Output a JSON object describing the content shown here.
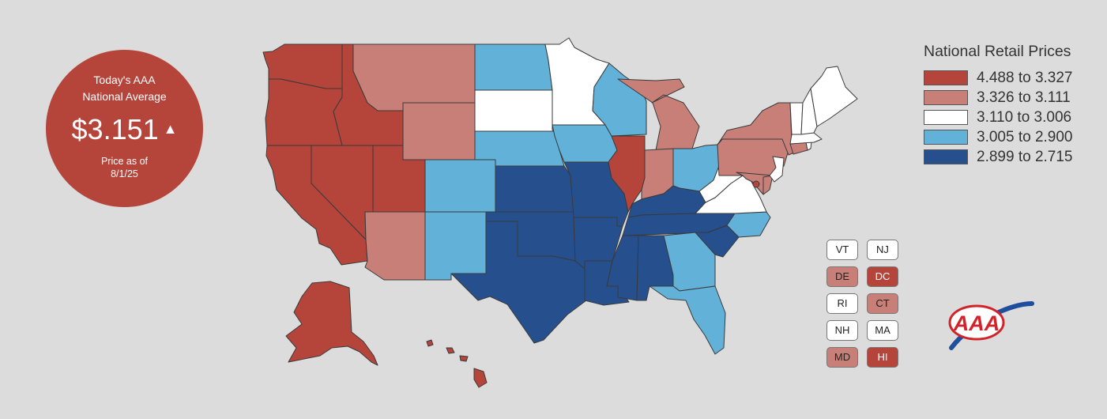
{
  "badge": {
    "title": "Today's AAA\nNational Average",
    "price": "$3.151",
    "trend_icon": "up-triangle-icon",
    "as_of": "Price as of\n8/1/25"
  },
  "legend": {
    "title": "National Retail Prices",
    "ranges": [
      {
        "label": "4.488 to 3.327",
        "color": "#b5443a"
      },
      {
        "label": "3.326 to 3.111",
        "color": "#c87f78"
      },
      {
        "label": "3.110 to 3.006",
        "color": "#ffffff"
      },
      {
        "label": "3.005 to 2.900",
        "color": "#62b1d8"
      },
      {
        "label": "2.899 to 2.715",
        "color": "#264f8e"
      }
    ]
  },
  "states": {
    "WA": 0,
    "OR": 0,
    "CA": 0,
    "NV": 0,
    "ID": 0,
    "UT": 0,
    "AK": 0,
    "HI": 0,
    "IL": 0,
    "DC": 0,
    "MT": 1,
    "WY": 1,
    "AZ": 1,
    "MI": 1,
    "IN": 1,
    "NY": 1,
    "PA": 1,
    "DE": 1,
    "MD": 1,
    "CT": 1,
    "MN": 2,
    "SD": 2,
    "WV": 2,
    "VA": 2,
    "NJ": 2,
    "ME": 2,
    "NH": 2,
    "VT": 2,
    "MA": 2,
    "RI": 2,
    "ND": 3,
    "NE": 3,
    "CO": 3,
    "NM": 3,
    "IA": 3,
    "WI": 3,
    "OH": 3,
    "NC": 3,
    "GA": 3,
    "FL": 3,
    "KS": 4,
    "OK": 4,
    "TX": 4,
    "MO": 4,
    "AR": 4,
    "LA": 4,
    "MS": 4,
    "AL": 4,
    "TN": 4,
    "KY": 4,
    "SC": 4
  },
  "small_states": [
    "VT",
    "NJ",
    "DE",
    "DC",
    "RI",
    "CT",
    "NH",
    "MA",
    "MD",
    "HI"
  ],
  "logo": {
    "text": "AAA",
    "red": "#d2232a",
    "blue": "#1f4e9c"
  }
}
